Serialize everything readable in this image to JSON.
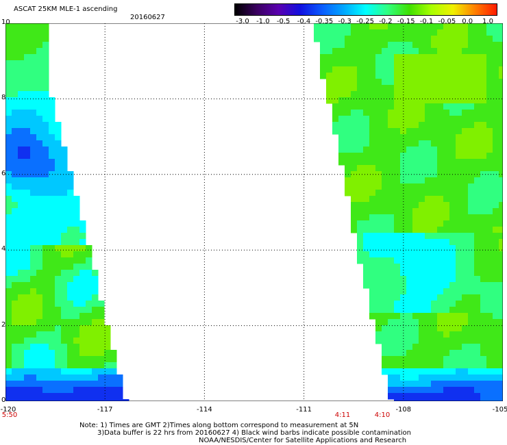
{
  "header": {
    "title": "ASCAT 25KM MLE-1 ascending",
    "date": "20160627"
  },
  "colorbar": {
    "labels": [
      "-3.0",
      "-1.0",
      "-0.5",
      "-0.4",
      "-0.35",
      "-0.3",
      "-0.25",
      "-0.2",
      "-0.15",
      "-0.1",
      "-0.05",
      "0.0",
      "1.0"
    ],
    "colors": [
      "#000000",
      "#3a0060",
      "#5a00b0",
      "#1010e0",
      "#0a5cff",
      "#00a8ff",
      "#00ffff",
      "#30ff80",
      "#40e000",
      "#a8ff00",
      "#f0f000",
      "#ff8000",
      "#ff1a00"
    ]
  },
  "map": {
    "x_ticks": [
      "-120",
      "-117",
      "-114",
      "-111",
      "-108",
      "-105"
    ],
    "y_ticks": [
      "0",
      "2",
      "4",
      "6",
      "8",
      "10"
    ],
    "times": [
      "5:50",
      "4:11",
      "4:10"
    ],
    "grid_color": "#000000",
    "lon_range": [
      -120,
      -105
    ],
    "lat_range": [
      0,
      10
    ]
  },
  "notes": {
    "line1": "Note: 1) Times are GMT 2)Times along bottom correspond to measurement at 5N",
    "line2": "3)Data buffer is 22 hrs from 20160627 4) Black wind barbs indicate possible contamination",
    "line3": "NOAA/NESDIS/Center for Satellite Applications and Research"
  }
}
